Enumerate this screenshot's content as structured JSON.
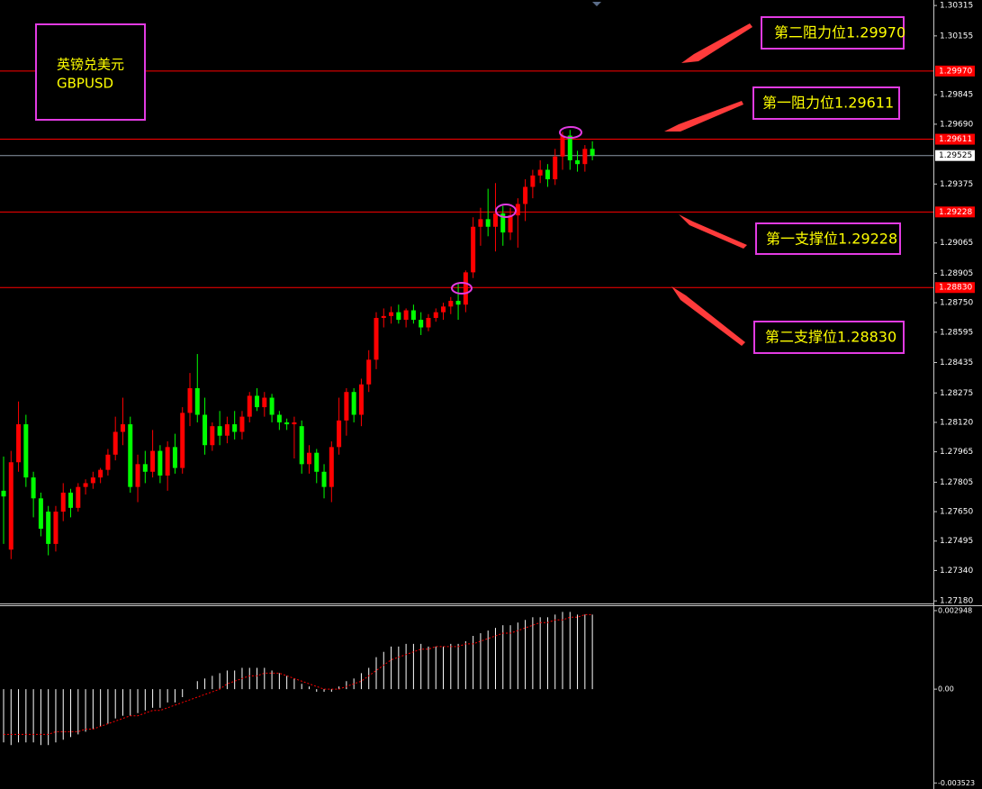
{
  "chart_data": [
    {
      "type": "candlestick",
      "title": "英镑兑美元",
      "subtitle": "GBPUSD",
      "up_color": "#ff0000",
      "down_color": "#00ff00",
      "ylim": [
        1.27176,
        1.30344
      ],
      "yticks": [
        1.30315,
        1.30155,
        1.29845,
        {
          "value": 1.2969,
          "label": "1.29690"
        },
        1.29375,
        1.29065,
        1.28905,
        {
          "value": 1.2875,
          "label": "1.28750"
        },
        1.28595,
        1.28435,
        1.28275,
        {
          "value": 1.2812,
          "label": "1.28120"
        },
        1.27965,
        1.27805,
        {
          "value": 1.2765,
          "label": "1.27650"
        },
        1.27495,
        {
          "value": 1.2734,
          "label": "1.27340"
        },
        {
          "value": 1.2718,
          "label": "1.27180"
        }
      ],
      "levels": [
        {
          "value": 1.2997,
          "label": "1.29970",
          "note": "第二阻力位1.29970"
        },
        {
          "value": 1.29611,
          "label": "1.29611",
          "note": "第一阻力位1.29611"
        },
        {
          "value": 1.29228,
          "label": "1.29228",
          "note": "第一支撑位1.29228"
        },
        {
          "value": 1.2883,
          "label": "1.28830",
          "note": "第二支撑位1.28830"
        }
      ],
      "current_price": {
        "value": 1.29525,
        "label": "1.29525"
      },
      "open": [
        1.2776,
        1.2745,
        1.2791,
        1.2811,
        1.2783,
        1.2772,
        1.2765,
        1.2748,
        1.2765,
        1.2775,
        1.2767,
        1.2778,
        1.278,
        1.2783,
        1.2787,
        1.2795,
        1.2807,
        1.2811,
        1.2778,
        1.279,
        1.2786,
        1.2797,
        1.2784,
        1.2799,
        1.2788,
        1.2817,
        1.283,
        1.2816,
        1.28,
        1.281,
        1.2805,
        1.2811,
        1.2807,
        1.2815,
        1.2826,
        1.282,
        1.2825,
        1.2816,
        1.2812,
        1.2811,
        1.281,
        1.279,
        1.2796,
        1.2786,
        1.2778,
        1.2799,
        1.2813,
        1.2828,
        1.2816,
        1.2832,
        1.2845,
        1.2867,
        1.2868,
        1.287,
        1.2866,
        1.2871,
        1.2866,
        1.2862,
        1.2867,
        1.287,
        1.2873,
        1.2876,
        1.2874,
        1.2891,
        1.2915,
        1.2919,
        1.2915,
        1.2922,
        1.2912,
        1.2921,
        1.2927,
        1.2936,
        1.2942,
        1.2945,
        1.294,
        1.2952,
        1.2963,
        1.295,
        1.2948,
        1.2956
      ],
      "high": [
        1.2794,
        1.2797,
        1.2823,
        1.2816,
        1.2786,
        1.2775,
        1.2768,
        1.2768,
        1.278,
        1.2777,
        1.278,
        1.2782,
        1.2786,
        1.2788,
        1.2798,
        1.2815,
        1.2825,
        1.2815,
        1.2795,
        1.2797,
        1.2808,
        1.28,
        1.2802,
        1.2806,
        1.282,
        1.2838,
        1.2848,
        1.2825,
        1.2812,
        1.2818,
        1.2815,
        1.2818,
        1.2818,
        1.2828,
        1.283,
        1.2828,
        1.2827,
        1.2818,
        1.2814,
        1.2815,
        1.2813,
        1.28,
        1.2798,
        1.279,
        1.2802,
        1.2825,
        1.283,
        1.283,
        1.2835,
        1.285,
        1.287,
        1.2872,
        1.2873,
        1.2874,
        1.2872,
        1.2874,
        1.287,
        1.2869,
        1.2872,
        1.2875,
        1.2878,
        1.2885,
        1.2892,
        1.292,
        1.2925,
        1.2935,
        1.2938,
        1.2926,
        1.2925,
        1.293,
        1.294,
        1.2945,
        1.295,
        1.2948,
        1.2956,
        1.2965,
        1.2966,
        1.2955,
        1.2958,
        1.296
      ],
      "low": [
        1.2748,
        1.274,
        1.2786,
        1.2778,
        1.2762,
        1.2752,
        1.2742,
        1.2744,
        1.276,
        1.2762,
        1.2765,
        1.2774,
        1.2777,
        1.278,
        1.2784,
        1.2792,
        1.28,
        1.2775,
        1.277,
        1.278,
        1.2783,
        1.278,
        1.2776,
        1.2785,
        1.2785,
        1.281,
        1.2812,
        1.2795,
        1.2797,
        1.28,
        1.2801,
        1.2803,
        1.2803,
        1.2812,
        1.2818,
        1.2815,
        1.2812,
        1.2808,
        1.2808,
        1.2793,
        1.2785,
        1.2785,
        1.278,
        1.2772,
        1.277,
        1.2795,
        1.2805,
        1.2812,
        1.281,
        1.2828,
        1.284,
        1.2862,
        1.2864,
        1.2864,
        1.2862,
        1.2864,
        1.2858,
        1.286,
        1.2865,
        1.2866,
        1.2869,
        1.2866,
        1.287,
        1.2888,
        1.2905,
        1.291,
        1.2902,
        1.2905,
        1.2908,
        1.2904,
        1.2918,
        1.293,
        1.2938,
        1.2936,
        1.2937,
        1.2945,
        1.2945,
        1.2944,
        1.2944,
        1.295
      ],
      "close": [
        1.2773,
        1.2791,
        1.2811,
        1.2783,
        1.2772,
        1.2756,
        1.2748,
        1.2765,
        1.2775,
        1.2767,
        1.2778,
        1.278,
        1.2783,
        1.2787,
        1.2795,
        1.2807,
        1.2811,
        1.2778,
        1.279,
        1.2786,
        1.2797,
        1.2784,
        1.2799,
        1.2788,
        1.2817,
        1.283,
        1.2816,
        1.28,
        1.281,
        1.2805,
        1.2811,
        1.2807,
        1.2815,
        1.2826,
        1.282,
        1.2825,
        1.2816,
        1.2812,
        1.2811,
        1.2812,
        1.279,
        1.2796,
        1.2786,
        1.2778,
        1.2799,
        1.2813,
        1.2828,
        1.2816,
        1.2832,
        1.2845,
        1.2867,
        1.2868,
        1.287,
        1.2866,
        1.2871,
        1.2866,
        1.2862,
        1.2867,
        1.287,
        1.2873,
        1.2876,
        1.2874,
        1.2891,
        1.2915,
        1.2919,
        1.2915,
        1.2922,
        1.2912,
        1.2921,
        1.2927,
        1.2936,
        1.2942,
        1.2945,
        1.294,
        1.2952,
        1.2963,
        1.295,
        1.2948,
        1.2956,
        1.29525
      ]
    },
    {
      "type": "macd",
      "ylim": [
        -0.00375,
        0.00315
      ],
      "yticks": [
        0.002948,
        {
          "value": 0,
          "label": "0.00"
        },
        -0.003523
      ],
      "histogram": {
        "color": "#ffffff",
        "values": [
          -0.002,
          -0.0021,
          -0.002,
          -0.002,
          -0.002,
          -0.0021,
          -0.0021,
          -0.002,
          -0.0019,
          -0.0018,
          -0.0017,
          -0.0016,
          -0.0015,
          -0.0014,
          -0.0013,
          -0.0011,
          -0.001,
          -0.001,
          -0.0009,
          -0.0008,
          -0.0007,
          -0.0007,
          -0.0005,
          -0.0005,
          -0.0003,
          0.0,
          0.0003,
          0.0004,
          0.0005,
          0.0006,
          0.0007,
          0.0007,
          0.0008,
          0.0008,
          0.0008,
          0.0008,
          0.0007,
          0.0006,
          0.0005,
          0.0004,
          0.0002,
          0.0001,
          -0.0001,
          -0.0001,
          -0.0001,
          0.0001,
          0.0003,
          0.0004,
          0.0006,
          0.0008,
          0.0012,
          0.0014,
          0.0016,
          0.0016,
          0.0017,
          0.0017,
          0.0017,
          0.0016,
          0.0016,
          0.0016,
          0.0017,
          0.0017,
          0.0018,
          0.002,
          0.0021,
          0.0022,
          0.0023,
          0.0024,
          0.0024,
          0.0025,
          0.0026,
          0.0027,
          0.0027,
          0.0027,
          0.0028,
          0.0029,
          0.0029,
          0.0028,
          0.0028,
          0.0028
        ]
      },
      "signal": {
        "color": "#ff0000",
        "values": [
          -0.0017,
          -0.0017,
          -0.0017,
          -0.0017,
          -0.0017,
          -0.0017,
          -0.0017,
          -0.0016,
          -0.0016,
          -0.0016,
          -0.0016,
          -0.0015,
          -0.0015,
          -0.0014,
          -0.0013,
          -0.0012,
          -0.0011,
          -0.001,
          -0.001,
          -0.0009,
          -0.0008,
          -0.0008,
          -0.0007,
          -0.0006,
          -0.0005,
          -0.0004,
          -0.0003,
          -0.0002,
          -0.0001,
          0.0,
          0.0002,
          0.0003,
          0.0004,
          0.0005,
          0.0005,
          0.0006,
          0.0006,
          0.0006,
          0.0005,
          0.0004,
          0.0003,
          0.0002,
          0.0001,
          0.0,
          0.0,
          0.0,
          0.0001,
          0.0002,
          0.0003,
          0.0005,
          0.0007,
          0.0009,
          0.0011,
          0.0012,
          0.0013,
          0.0014,
          0.0015,
          0.0015,
          0.0016,
          0.0016,
          0.0016,
          0.0016,
          0.0017,
          0.0017,
          0.0018,
          0.0019,
          0.002,
          0.0021,
          0.0021,
          0.0022,
          0.0023,
          0.0024,
          0.0025,
          0.0025,
          0.0026,
          0.0026,
          0.0027,
          0.0027,
          0.0028,
          0.0028
        ]
      }
    }
  ]
}
